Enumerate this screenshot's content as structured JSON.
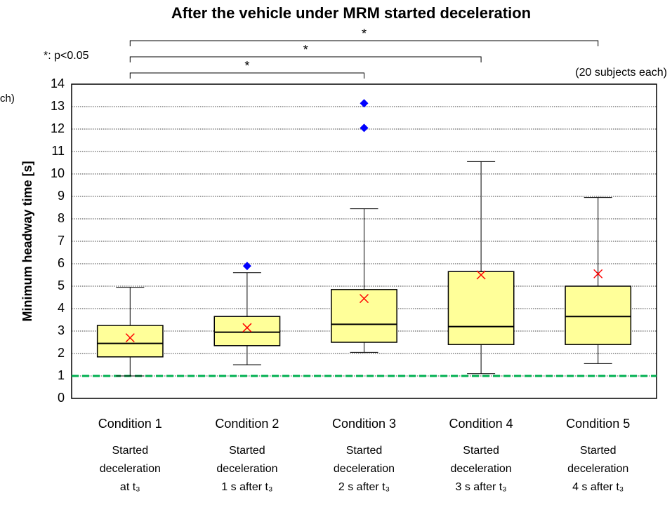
{
  "chart_data": {
    "type": "box",
    "title": "After the vehicle under MRM started deceleration",
    "y_label": "Minimum headway time [s]",
    "note": "*: p<0.05",
    "subjects_note": "(20 subjects each)",
    "clipped_text": "ch)",
    "categories": [
      "Condition 1",
      "Condition 2",
      "Condition 3",
      "Condition 4",
      "Condition 5"
    ],
    "descriptions": [
      [
        "Started",
        "deceleration",
        "at t₃"
      ],
      [
        "Started",
        "deceleration",
        "1 s after t₃"
      ],
      [
        "Started",
        "deceleration",
        "2 s after t₃"
      ],
      [
        "Started",
        "deceleration",
        "3 s after t₃"
      ],
      [
        "Started",
        "deceleration",
        "4 s after t₃"
      ]
    ],
    "boxes": [
      {
        "low": 1.0,
        "q1": 1.85,
        "median": 2.45,
        "q3": 3.25,
        "high": 4.95,
        "mean": 2.7,
        "outliers": []
      },
      {
        "low": 1.5,
        "q1": 2.35,
        "median": 2.95,
        "q3": 3.65,
        "high": 5.6,
        "mean": 3.15,
        "outliers": [
          5.9
        ]
      },
      {
        "low": 2.05,
        "q1": 2.5,
        "median": 3.3,
        "q3": 4.85,
        "high": 8.45,
        "mean": 4.45,
        "outliers": [
          12.05,
          13.15
        ]
      },
      {
        "low": 1.1,
        "q1": 2.4,
        "median": 3.2,
        "q3": 5.65,
        "high": 10.55,
        "mean": 5.5,
        "outliers": []
      },
      {
        "low": 1.55,
        "q1": 2.4,
        "median": 3.65,
        "q3": 5.0,
        "high": 8.95,
        "mean": 5.55,
        "outliers": []
      }
    ],
    "box_color": "#ffff99",
    "outlier_color": "#0000ff",
    "mean_color": "#ff0000",
    "reference_line": 1,
    "reference_color": "#00b050",
    "significance": [
      {
        "from": 0,
        "to": 2,
        "label": "*"
      },
      {
        "from": 0,
        "to": 3,
        "label": "*"
      },
      {
        "from": 0,
        "to": 4,
        "label": "*"
      }
    ],
    "ylim": [
      0,
      14
    ],
    "yticks": [
      0,
      1,
      2,
      3,
      4,
      5,
      6,
      7,
      8,
      9,
      10,
      11,
      12,
      13,
      14
    ],
    "grid": true
  }
}
